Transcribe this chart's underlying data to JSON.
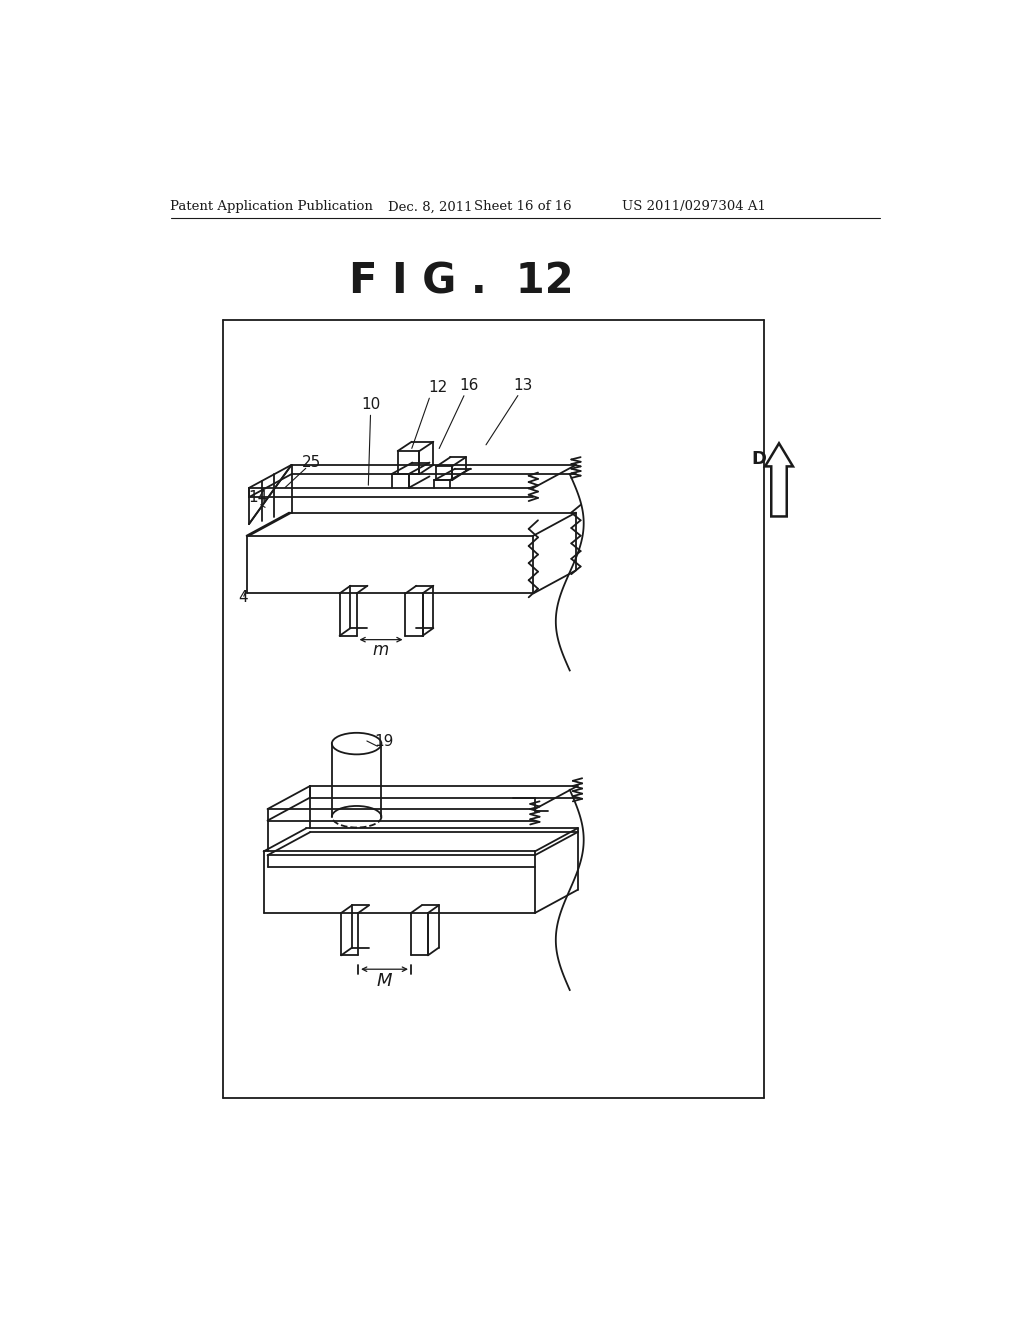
{
  "bg_color": "#ffffff",
  "lc": "#1a1a1a",
  "lw": 1.3,
  "header_left": "Patent Application Publication",
  "header_mid1": "Dec. 8, 2011",
  "header_mid2": "Sheet 16 of 16",
  "header_right": "US 2011/0297304 A1",
  "fig_title": "F I G .  12"
}
